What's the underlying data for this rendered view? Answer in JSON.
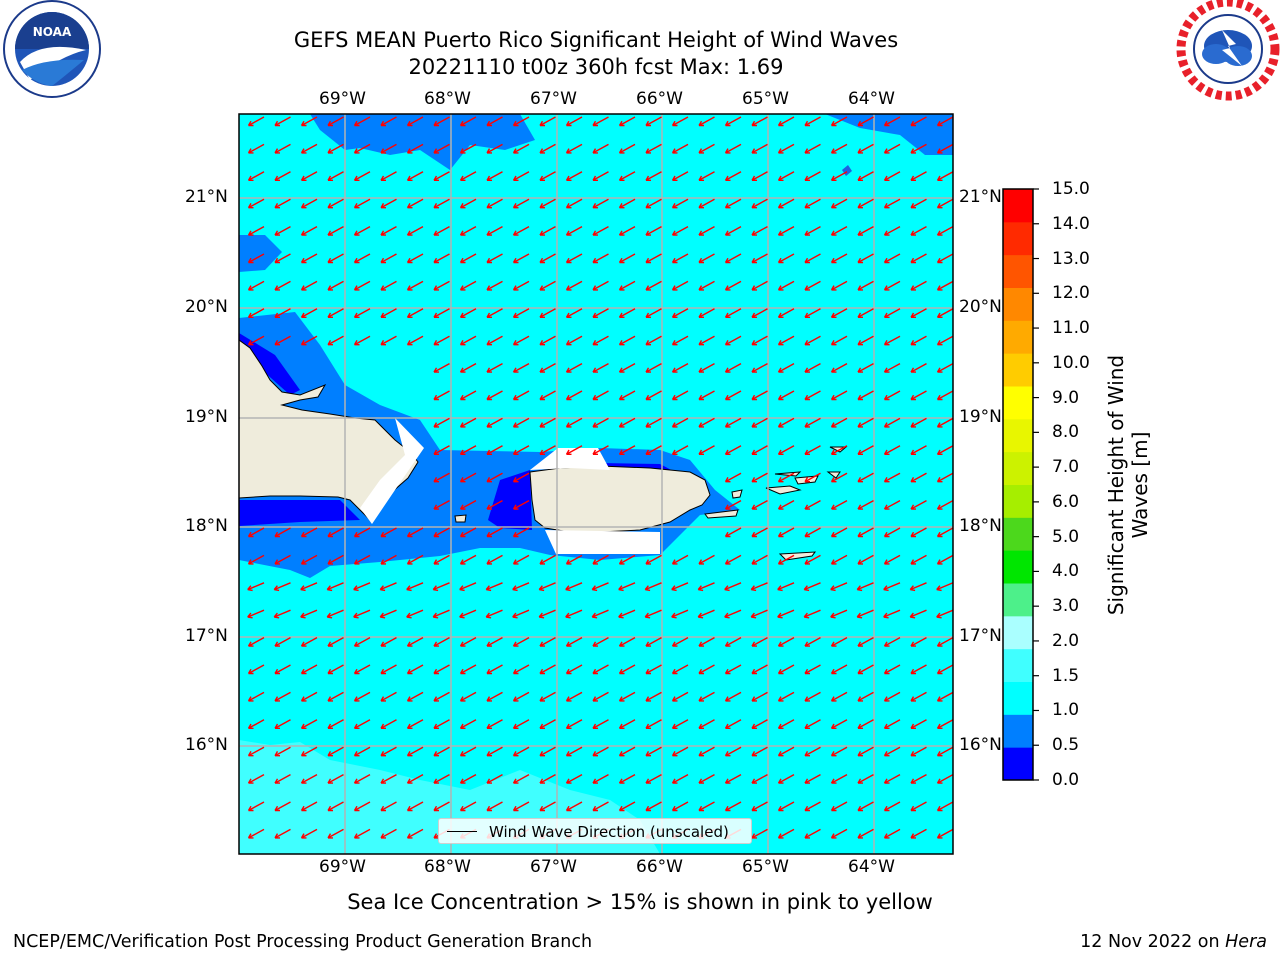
{
  "title_line1": "GEFS MEAN Puerto Rico Significant Height of Wind Waves",
  "title_line2": "20221110 t00z 360h fcst   Max: 1.69",
  "logos": {
    "noaa": {
      "text": "NOAA",
      "ring_text": "NATIONAL OCEANIC AND ATMOSPHERIC ADMINISTRATION · U.S. DEPARTMENT OF COMMERCE"
    },
    "nws": {
      "ring_text": "NATIONAL WEATHER SERVICE"
    }
  },
  "map": {
    "lon_labels": [
      "69°W",
      "68°W",
      "67°W",
      "66°W",
      "65°W",
      "64°W"
    ],
    "lat_labels": [
      "21°N",
      "20°N",
      "19°N",
      "18°N",
      "17°N",
      "16°N"
    ],
    "legend_label": "Wind Wave Direction (unscaled)",
    "colors": {
      "land": "#efecdc",
      "ocean_default": "#00ffff"
    }
  },
  "colorbar": {
    "label": "Significant Height of Wind Waves [m]",
    "ticks": [
      "15.0",
      "14.0",
      "13.0",
      "12.0",
      "11.0",
      "10.0",
      "9.0",
      "8.0",
      "7.0",
      "6.0",
      "5.0",
      "4.0",
      "3.0",
      "2.0",
      "1.5",
      "1.0",
      "0.5",
      "0.0"
    ],
    "levels": [
      {
        "range": "0.0-0.5",
        "color": "#0000ff"
      },
      {
        "range": "0.5-1.0",
        "color": "#007fff"
      },
      {
        "range": "1.0-1.5",
        "color": "#00ffff"
      },
      {
        "range": "1.5-2.0",
        "color": "#40ffff"
      },
      {
        "range": "2.0-3.0",
        "color": "#aaffff"
      },
      {
        "range": "3.0-4.0",
        "color": "#4df08a"
      },
      {
        "range": "4.0-5.0",
        "color": "#00e600"
      },
      {
        "range": "5.0-6.0",
        "color": "#4cd81c"
      },
      {
        "range": "6.0-7.0",
        "color": "#a6ee00"
      },
      {
        "range": "7.0-8.0",
        "color": "#ccf200"
      },
      {
        "range": "8.0-9.0",
        "color": "#e8f600"
      },
      {
        "range": "9.0-10.0",
        "color": "#ffff00"
      },
      {
        "range": "10.0-11.0",
        "color": "#ffcc00"
      },
      {
        "range": "11.0-12.0",
        "color": "#ffaa00"
      },
      {
        "range": "12.0-13.0",
        "color": "#ff8800"
      },
      {
        "range": "13.0-14.0",
        "color": "#ff5500"
      },
      {
        "range": "14.0-15.0",
        "color": "#ff2a00"
      },
      {
        "range": "15.0+",
        "color": "#ff0000"
      }
    ]
  },
  "sea_ice_note": "Sea Ice Concentration > 15% is shown in pink to yellow",
  "credit": "NCEP/EMC/Verification Post Processing Product Generation Branch",
  "date_prefix": "12 Nov 2022 on ",
  "date_machine": "Hera"
}
